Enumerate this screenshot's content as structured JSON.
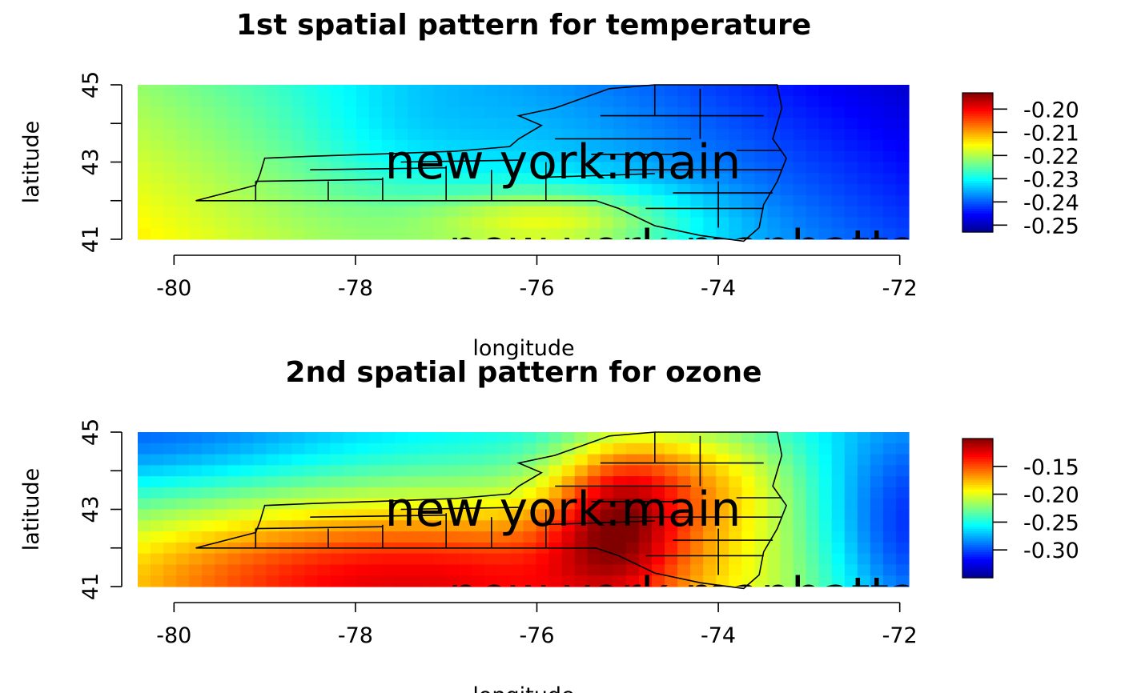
{
  "chart_data": [
    {
      "type": "heatmap",
      "title": "1st spatial pattern for temperature",
      "xlabel": "longitude",
      "ylabel": "latitude",
      "xlim": [
        -80.4,
        -71.9
      ],
      "ylim": [
        41,
        45
      ],
      "x_ticks": [
        -80,
        -78,
        -76,
        -74,
        -72
      ],
      "y_ticks": [
        41,
        42,
        43,
        44,
        45
      ],
      "y_tick_labels": [
        "41",
        "",
        "43",
        "",
        "45"
      ],
      "colorbar": {
        "range": [
          -0.253,
          -0.193
        ],
        "ticks": [
          -0.2,
          -0.21,
          -0.22,
          -0.23,
          -0.24,
          -0.25
        ],
        "tick_labels": [
          "-0.20",
          "-0.21",
          "-0.22",
          "-0.23",
          "-0.24",
          "-0.25"
        ]
      },
      "overlay_label": "new york:main",
      "bottom_label": "new york:manhattan"
    },
    {
      "type": "heatmap",
      "title": "2nd spatial pattern for ozone",
      "xlabel": "longitude",
      "ylabel": "latitude",
      "xlim": [
        -80.4,
        -71.9
      ],
      "ylim": [
        41,
        45
      ],
      "x_ticks": [
        -80,
        -78,
        -76,
        -74,
        -72
      ],
      "y_ticks": [
        41,
        42,
        43,
        44,
        45
      ],
      "y_tick_labels": [
        "41",
        "",
        "43",
        "",
        "45"
      ],
      "colorbar": {
        "range": [
          -0.35,
          -0.1
        ],
        "ticks": [
          -0.15,
          -0.2,
          -0.25,
          -0.3
        ],
        "tick_labels": [
          "-0.15",
          "-0.20",
          "-0.25",
          "-0.30"
        ]
      },
      "overlay_label": "new york:main",
      "bottom_label": "new york:manhattan"
    }
  ]
}
